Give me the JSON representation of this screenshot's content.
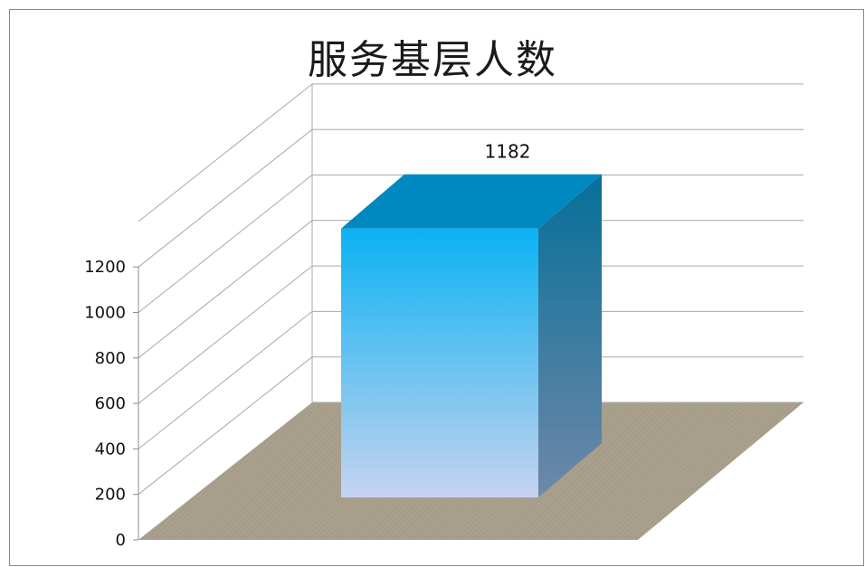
{
  "chart_data": {
    "type": "bar",
    "variant": "3d-column",
    "title": "服务基层人数",
    "categories": [
      ""
    ],
    "values": [
      1182
    ],
    "data_labels": [
      "1182"
    ],
    "xlabel": "",
    "ylabel": "",
    "ylim": [
      0,
      1200
    ],
    "yticks": [
      "0",
      "200",
      "400",
      "600",
      "800",
      "1000",
      "1200"
    ],
    "grid": true,
    "legend": "none",
    "colors": {
      "bar_front_top": "#0bb2f3",
      "bar_front_bottom": "#c6d3ef",
      "bar_top": "#0088c0",
      "bar_side_top": "#066f99",
      "bar_side_bottom": "#6f88a8",
      "floor": "#a69c8a",
      "gridline": "#a8a8a8",
      "frame": "#8a8a8a"
    }
  }
}
